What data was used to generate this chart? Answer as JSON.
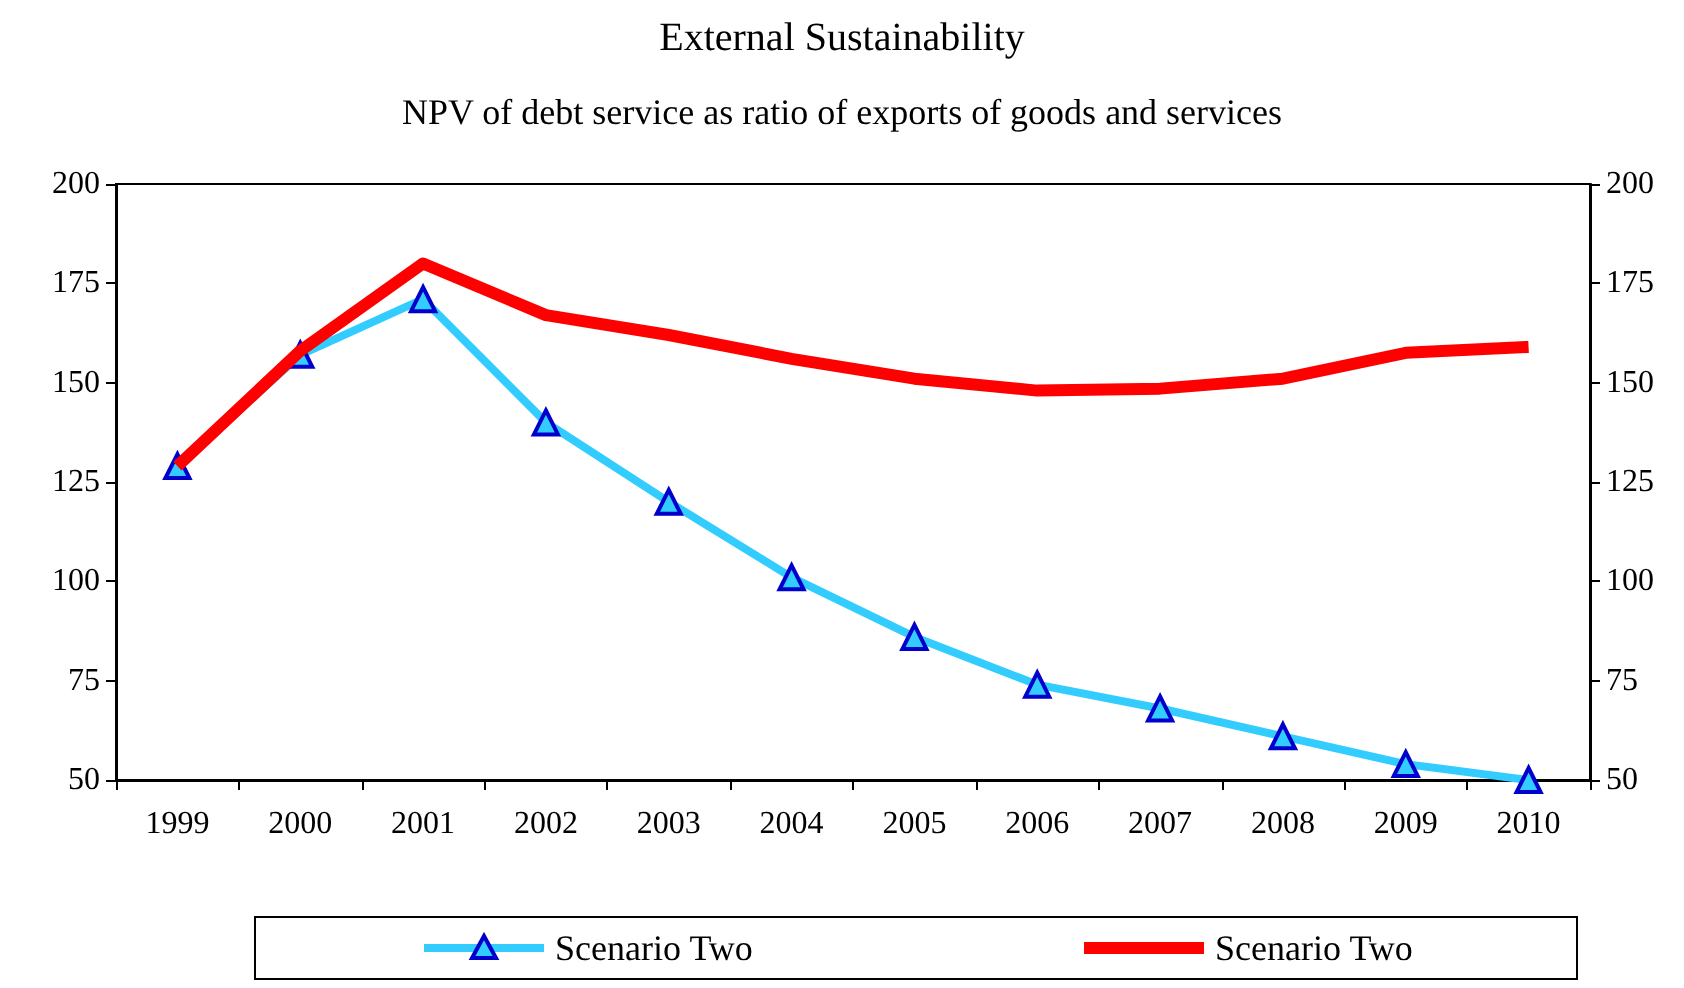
{
  "chart_data": {
    "type": "line",
    "title": "External Sustainability",
    "subtitle": "NPV of debt service as ratio of exports of goods and services",
    "categories": [
      "1999",
      "2000",
      "2001",
      "2002",
      "2003",
      "2004",
      "2005",
      "2006",
      "2007",
      "2008",
      "2009",
      "2010"
    ],
    "series": [
      {
        "name": "Scenario Two",
        "color": "#33ccff",
        "marker": "triangle",
        "values": [
          129,
          157,
          171,
          140,
          120,
          101,
          86,
          74,
          68,
          61,
          54,
          50
        ]
      },
      {
        "name": "Scenario Two",
        "color": "#ff0000",
        "marker": "none",
        "values": [
          129,
          158,
          180,
          167,
          162,
          156,
          151,
          148,
          148.5,
          151,
          157.5,
          159
        ]
      }
    ],
    "ylim": [
      50,
      200
    ],
    "yticks": [
      50,
      75,
      100,
      125,
      150,
      175,
      200
    ],
    "y2lim": [
      50,
      200
    ],
    "y2ticks": [
      50,
      75,
      100,
      125,
      150,
      175,
      200
    ],
    "grid": false,
    "legend": "bottom",
    "line_style": "solid"
  }
}
